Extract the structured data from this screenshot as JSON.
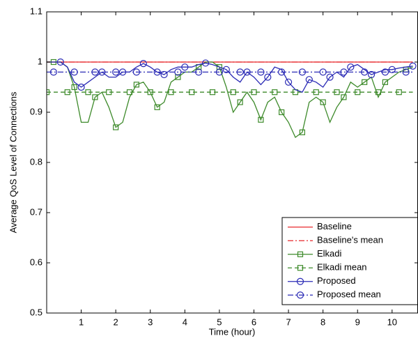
{
  "chart_data": {
    "type": "line",
    "xlabel": "Time (hour)",
    "ylabel": "Average QoS Level of Connections",
    "x": [
      0,
      0.2,
      0.4,
      0.6,
      0.8,
      1.0,
      1.2,
      1.4,
      1.6,
      1.8,
      2.0,
      2.2,
      2.4,
      2.6,
      2.8,
      3.0,
      3.2,
      3.4,
      3.6,
      3.8,
      4.0,
      4.2,
      4.4,
      4.6,
      4.8,
      5.0,
      5.2,
      5.4,
      5.6,
      5.8,
      6.0,
      6.2,
      6.4,
      6.6,
      6.8,
      7.0,
      7.2,
      7.4,
      7.6,
      7.8,
      8.0,
      8.2,
      8.4,
      8.6,
      8.8,
      9.0,
      9.2,
      9.4,
      9.6,
      9.8,
      10.0,
      10.2,
      10.4,
      10.6
    ],
    "xlim": [
      0,
      10.75
    ],
    "xticks": [
      1,
      2,
      3,
      4,
      5,
      6,
      7,
      8,
      9,
      10
    ],
    "ylim": [
      0.5,
      1.1
    ],
    "yticks": [
      0.5,
      0.6,
      0.7,
      0.8,
      0.9,
      1,
      1.1
    ],
    "legend": "lower right",
    "series": [
      {
        "name": "Baseline",
        "color": "#e8282b",
        "linestyle": "solid",
        "marker": "none",
        "values": [
          1,
          1,
          1,
          1,
          1,
          1,
          1,
          1,
          1,
          1,
          1,
          1,
          1,
          1,
          1,
          1,
          1,
          1,
          1,
          1,
          1,
          1,
          1,
          1,
          1,
          1,
          1,
          1,
          1,
          1,
          1,
          1,
          1,
          1,
          1,
          1,
          1,
          1,
          1,
          1,
          1,
          1,
          1,
          1,
          1,
          1,
          1,
          1,
          1,
          1,
          1,
          1,
          1,
          1
        ]
      },
      {
        "name": "Baseline's mean",
        "color": "#e8282b",
        "linestyle": "dashdot",
        "marker": "none",
        "values": [
          1,
          1,
          1,
          1,
          1,
          1,
          1,
          1,
          1,
          1,
          1,
          1,
          1,
          1,
          1,
          1,
          1,
          1,
          1,
          1,
          1,
          1,
          1,
          1,
          1,
          1,
          1,
          1,
          1,
          1,
          1,
          1,
          1,
          1,
          1,
          1,
          1,
          1,
          1,
          1,
          1,
          1,
          1,
          1,
          1,
          1,
          1,
          1,
          1,
          1,
          1,
          1,
          1,
          1
        ]
      },
      {
        "name": "Elkadi",
        "color": "#3d8a2a",
        "linestyle": "solid",
        "marker": "square",
        "values": [
          1.0,
          1.0,
          1.0,
          0.99,
          0.95,
          0.88,
          0.88,
          0.93,
          0.94,
          0.91,
          0.87,
          0.88,
          0.93,
          0.955,
          0.96,
          0.94,
          0.91,
          0.92,
          0.96,
          0.97,
          0.98,
          0.98,
          0.99,
          1.0,
          1.0,
          0.99,
          0.95,
          0.9,
          0.92,
          0.94,
          0.92,
          0.885,
          0.92,
          0.93,
          0.9,
          0.88,
          0.85,
          0.86,
          0.92,
          0.93,
          0.92,
          0.88,
          0.91,
          0.93,
          0.96,
          0.95,
          0.96,
          0.97,
          0.93,
          0.96,
          0.97,
          0.98,
          0.985,
          0.99
        ]
      },
      {
        "name": "Elkadi mean",
        "color": "#3d8a2a",
        "linestyle": "dashed",
        "marker": "square",
        "values": [
          0.94,
          0.94,
          0.94,
          0.94,
          0.94,
          0.94,
          0.94,
          0.94,
          0.94,
          0.94,
          0.94,
          0.94,
          0.94,
          0.94,
          0.94,
          0.94,
          0.94,
          0.94,
          0.94,
          0.94,
          0.94,
          0.94,
          0.94,
          0.94,
          0.94,
          0.94,
          0.94,
          0.94,
          0.94,
          0.94,
          0.94,
          0.94,
          0.94,
          0.94,
          0.94,
          0.94,
          0.94,
          0.94,
          0.94,
          0.94,
          0.94,
          0.94,
          0.94,
          0.94,
          0.94,
          0.94,
          0.94,
          0.94,
          0.94,
          0.94,
          0.94,
          0.94,
          0.94,
          0.94
        ]
      },
      {
        "name": "Proposed",
        "color": "#2a2ab5",
        "linestyle": "solid",
        "marker": "circle",
        "values": [
          1.0,
          1.0,
          1.0,
          0.99,
          0.96,
          0.95,
          0.96,
          0.97,
          0.98,
          0.97,
          0.97,
          0.98,
          0.98,
          0.99,
          0.997,
          0.99,
          0.98,
          0.975,
          0.985,
          0.99,
          0.99,
          0.99,
          0.995,
          0.998,
          0.995,
          0.99,
          0.985,
          0.97,
          0.96,
          0.98,
          0.97,
          0.955,
          0.97,
          0.99,
          0.985,
          0.96,
          0.945,
          0.94,
          0.965,
          0.96,
          0.95,
          0.97,
          0.98,
          0.97,
          0.99,
          0.995,
          0.985,
          0.975,
          0.98,
          0.985,
          0.985,
          0.988,
          0.99,
          0.992
        ]
      },
      {
        "name": "Proposed mean",
        "color": "#2a2ab5",
        "linestyle": "dashdot",
        "marker": "circle",
        "values": [
          0.98,
          0.98,
          0.98,
          0.98,
          0.98,
          0.98,
          0.98,
          0.98,
          0.98,
          0.98,
          0.98,
          0.98,
          0.98,
          0.98,
          0.98,
          0.98,
          0.98,
          0.98,
          0.98,
          0.98,
          0.98,
          0.98,
          0.98,
          0.98,
          0.98,
          0.98,
          0.98,
          0.98,
          0.98,
          0.98,
          0.98,
          0.98,
          0.98,
          0.98,
          0.98,
          0.98,
          0.98,
          0.98,
          0.98,
          0.98,
          0.98,
          0.98,
          0.98,
          0.98,
          0.98,
          0.98,
          0.98,
          0.98,
          0.98,
          0.98,
          0.98,
          0.98,
          0.98,
          0.98
        ]
      }
    ]
  }
}
